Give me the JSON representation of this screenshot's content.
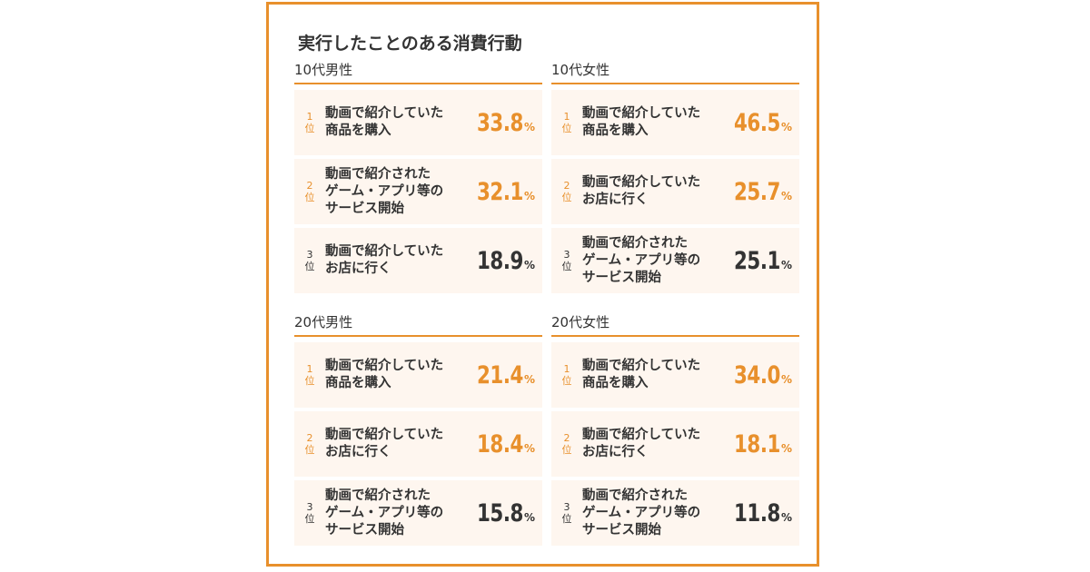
{
  "chart_data": {
    "type": "table",
    "title": "実行したことのある消費行動",
    "accent_color": "#e8902c",
    "unit": "%",
    "groups": [
      {
        "name": "10代男性",
        "items": [
          {
            "rank_num": "1",
            "rank_suffix": "位",
            "lines": [
              "動画で紹介していた",
              "商品を購入"
            ],
            "value": "33.8"
          },
          {
            "rank_num": "2",
            "rank_suffix": "位",
            "lines": [
              "動画で紹介された",
              "ゲーム・アプリ等の",
              "サービス開始"
            ],
            "value": "32.1"
          },
          {
            "rank_num": "3",
            "rank_suffix": "位",
            "lines": [
              "動画で紹介していた",
              "お店に行く"
            ],
            "value": "18.9"
          }
        ]
      },
      {
        "name": "10代女性",
        "items": [
          {
            "rank_num": "1",
            "rank_suffix": "位",
            "lines": [
              "動画で紹介していた",
              "商品を購入"
            ],
            "value": "46.5"
          },
          {
            "rank_num": "2",
            "rank_suffix": "位",
            "lines": [
              "動画で紹介していた",
              "お店に行く"
            ],
            "value": "25.7"
          },
          {
            "rank_num": "3",
            "rank_suffix": "位",
            "lines": [
              "動画で紹介された",
              "ゲーム・アプリ等の",
              "サービス開始"
            ],
            "value": "25.1"
          }
        ]
      },
      {
        "name": "20代男性",
        "items": [
          {
            "rank_num": "1",
            "rank_suffix": "位",
            "lines": [
              "動画で紹介していた",
              "商品を購入"
            ],
            "value": "21.4"
          },
          {
            "rank_num": "2",
            "rank_suffix": "位",
            "lines": [
              "動画で紹介していた",
              "お店に行く"
            ],
            "value": "18.4"
          },
          {
            "rank_num": "3",
            "rank_suffix": "位",
            "lines": [
              "動画で紹介された",
              "ゲーム・アプリ等の",
              "サービス開始"
            ],
            "value": "15.8"
          }
        ]
      },
      {
        "name": "20代女性",
        "items": [
          {
            "rank_num": "1",
            "rank_suffix": "位",
            "lines": [
              "動画で紹介していた",
              "商品を購入"
            ],
            "value": "34.0"
          },
          {
            "rank_num": "2",
            "rank_suffix": "位",
            "lines": [
              "動画で紹介していた",
              "お店に行く"
            ],
            "value": "18.1"
          },
          {
            "rank_num": "3",
            "rank_suffix": "位",
            "lines": [
              "動画で紹介された",
              "ゲーム・アプリ等の",
              "サービス開始"
            ],
            "value": "11.8"
          }
        ]
      }
    ]
  }
}
